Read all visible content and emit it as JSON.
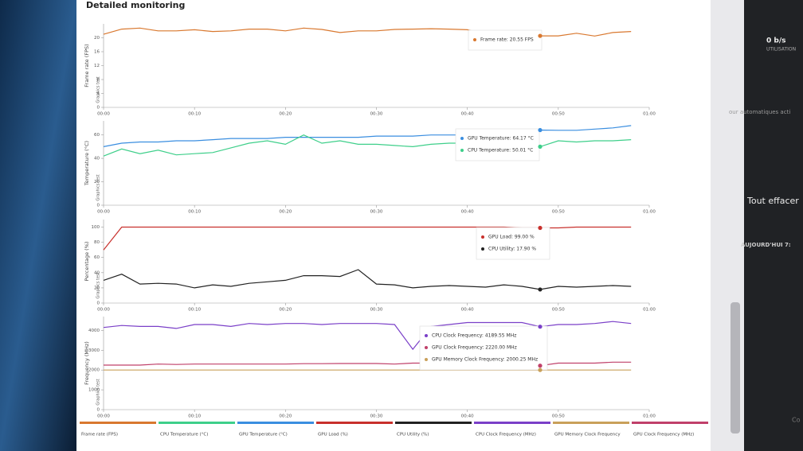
{
  "page": {
    "title": "Detailed monitoring",
    "side": {
      "rate": "0 b/s",
      "rate_label": "UTILISATION",
      "notice": "our automatiques acti",
      "clear": "Tout effacer",
      "today": "AUJOURD'HUI 7:",
      "cut": "Co"
    }
  },
  "chart_data": [
    {
      "type": "line",
      "ylabel": "Frame rate (FPS)",
      "sublabel": "Graphics test",
      "x": [
        0,
        2,
        4,
        6,
        8,
        10,
        12,
        14,
        16,
        18,
        20,
        22,
        24,
        26,
        28,
        30,
        32,
        34,
        36,
        38,
        40,
        42,
        44,
        46,
        48,
        50,
        52,
        54,
        56,
        58
      ],
      "xlim": [
        0,
        60
      ],
      "xticks": [
        {
          "value": 0,
          "label": "00:00"
        },
        {
          "value": 10,
          "label": "00:10"
        },
        {
          "value": 20,
          "label": "00:20"
        },
        {
          "value": 30,
          "label": "00:30"
        },
        {
          "value": 40,
          "label": "00:40"
        },
        {
          "value": 50,
          "label": "00:50"
        },
        {
          "value": 60,
          "label": "01:00"
        }
      ],
      "ylim": [
        0,
        24
      ],
      "yticks": [
        0,
        4,
        8,
        12,
        16,
        20
      ],
      "series": [
        {
          "name": "Frame rate (FPS)",
          "color": "#d9782f",
          "values": [
            21,
            22.5,
            22.8,
            22,
            22,
            22.3,
            21.8,
            22,
            22.5,
            22.5,
            22,
            22.8,
            22.4,
            21.5,
            22,
            22,
            22.4,
            22.5,
            22.6,
            22.5,
            22.3,
            21,
            20.6,
            21.2,
            20.55,
            20.55,
            21.3,
            20.5,
            21.5,
            21.8
          ]
        }
      ],
      "tooltip": [
        "Frame rate: 20.55 FPS"
      ]
    },
    {
      "type": "line",
      "ylabel": "Temperature (°C)",
      "sublabel": "Graphics test",
      "x": [
        0,
        2,
        4,
        6,
        8,
        10,
        12,
        14,
        16,
        18,
        20,
        22,
        24,
        26,
        28,
        30,
        32,
        34,
        36,
        38,
        40,
        42,
        44,
        46,
        48,
        50,
        52,
        54,
        56,
        58
      ],
      "xlim": [
        0,
        60
      ],
      "xticks": [
        {
          "value": 0,
          "label": "00:00"
        },
        {
          "value": 10,
          "label": "00:10"
        },
        {
          "value": 20,
          "label": "00:20"
        },
        {
          "value": 30,
          "label": "00:30"
        },
        {
          "value": 40,
          "label": "00:40"
        },
        {
          "value": 50,
          "label": "00:50"
        },
        {
          "value": 60,
          "label": "01:00"
        }
      ],
      "ylim": [
        0,
        72
      ],
      "yticks": [
        0,
        20,
        40,
        60
      ],
      "series": [
        {
          "name": "GPU Temperature (°C)",
          "color": "#3a8ee0",
          "values": [
            50,
            53,
            54,
            54,
            55,
            55,
            56,
            57,
            57,
            57,
            58,
            58,
            58,
            58,
            58,
            59,
            59,
            59,
            60,
            60,
            60,
            61,
            61,
            62,
            64.17,
            64,
            64,
            65,
            66,
            68
          ]
        },
        {
          "name": "CPU Temperature (°C)",
          "color": "#3ecf8a",
          "values": [
            42,
            48,
            44,
            47,
            43,
            44,
            45,
            49,
            53,
            55,
            52,
            60,
            53,
            55,
            52,
            52,
            51,
            50,
            52,
            53,
            53,
            54,
            52,
            51,
            50.01,
            55,
            54,
            55,
            55,
            56
          ]
        }
      ],
      "tooltip": [
        "GPU Temperature: 64.17 °C",
        "CPU Temperature: 50.01 °C"
      ]
    },
    {
      "type": "line",
      "ylabel": "Percentage (%)",
      "sublabel": "Graphics test",
      "x": [
        0,
        2,
        4,
        6,
        8,
        10,
        12,
        14,
        16,
        18,
        20,
        22,
        24,
        26,
        28,
        30,
        32,
        34,
        36,
        38,
        40,
        42,
        44,
        46,
        48,
        50,
        52,
        54,
        56,
        58
      ],
      "xlim": [
        0,
        60
      ],
      "xticks": [
        {
          "value": 0,
          "label": "00:00"
        },
        {
          "value": 10,
          "label": "00:10"
        },
        {
          "value": 20,
          "label": "00:20"
        },
        {
          "value": 30,
          "label": "00:30"
        },
        {
          "value": 40,
          "label": "00:40"
        },
        {
          "value": 50,
          "label": "00:50"
        },
        {
          "value": 60,
          "label": "01:00"
        }
      ],
      "ylim": [
        0,
        110
      ],
      "yticks": [
        0,
        20,
        40,
        60,
        80,
        100
      ],
      "series": [
        {
          "name": "GPU Load (%)",
          "color": "#c8302c",
          "values": [
            70,
            100,
            100,
            100,
            100,
            100,
            100,
            100,
            100,
            100,
            100,
            100,
            100,
            100,
            100,
            100,
            100,
            100,
            100,
            100,
            100,
            100,
            100,
            99,
            99,
            99,
            100,
            100,
            100,
            100
          ]
        },
        {
          "name": "CPU Utility (%)",
          "color": "#222222",
          "values": [
            30,
            38,
            25,
            26,
            25,
            20,
            24,
            22,
            26,
            28,
            30,
            36,
            36,
            35,
            44,
            25,
            24,
            20,
            22,
            23,
            22,
            21,
            24,
            22,
            17.9,
            22,
            21,
            22,
            23,
            22
          ]
        }
      ],
      "tooltip": [
        "GPU Load: 99.00 %",
        "CPU Utility: 17.90 %"
      ]
    },
    {
      "type": "line",
      "ylabel": "Frequency (MHz)",
      "sublabel": "Graphics test",
      "x": [
        0,
        2,
        4,
        6,
        8,
        10,
        12,
        14,
        16,
        18,
        20,
        22,
        24,
        26,
        28,
        30,
        32,
        34,
        36,
        38,
        40,
        42,
        44,
        46,
        48,
        50,
        52,
        54,
        56,
        58
      ],
      "xlim": [
        0,
        60
      ],
      "xticks": [
        {
          "value": 0,
          "label": "00:00"
        },
        {
          "value": 10,
          "label": "00:10"
        },
        {
          "value": 20,
          "label": "00:20"
        },
        {
          "value": 30,
          "label": "00:30"
        },
        {
          "value": 40,
          "label": "00:40"
        },
        {
          "value": 50,
          "label": "00:50"
        },
        {
          "value": 60,
          "label": "01:00"
        }
      ],
      "ylim": [
        0,
        4700
      ],
      "yticks": [
        0,
        1000,
        2000,
        3000,
        4000
      ],
      "series": [
        {
          "name": "CPU Clock Frequency (MHz)",
          "color": "#7a3fc8",
          "values": [
            4150,
            4250,
            4200,
            4200,
            4100,
            4300,
            4300,
            4200,
            4350,
            4300,
            4350,
            4350,
            4300,
            4350,
            4350,
            4350,
            4300,
            3050,
            4200,
            4300,
            4400,
            4400,
            4400,
            4400,
            4189.55,
            4300,
            4300,
            4350,
            4450,
            4350
          ]
        },
        {
          "name": "GPU Clock Frequency (MHz)",
          "color": "#c0406a",
          "values": [
            2250,
            2250,
            2250,
            2300,
            2280,
            2300,
            2300,
            2300,
            2300,
            2300,
            2300,
            2320,
            2320,
            2330,
            2330,
            2330,
            2300,
            2350,
            2350,
            2350,
            2330,
            2350,
            2350,
            2350,
            2220,
            2350,
            2350,
            2350,
            2400,
            2400
          ]
        },
        {
          "name": "GPU Memory Clock Frequency",
          "color": "#c9a05a",
          "values": [
            2000,
            2000,
            2000,
            2000,
            2000,
            2000,
            2000,
            2000,
            2000,
            2000,
            2000,
            2000,
            2000,
            2000,
            2000,
            2000,
            2000,
            2000,
            2000,
            2000,
            2000,
            2000,
            2000,
            2000,
            2000.25,
            2000,
            2000,
            2000,
            2000,
            2000
          ]
        }
      ],
      "tooltip": [
        "CPU Clock Frequency: 4189.55 MHz",
        "GPU Clock Frequency: 2220.00 MHz",
        "GPU Memory Clock Frequency: 2000.25 MHz"
      ]
    }
  ]
}
